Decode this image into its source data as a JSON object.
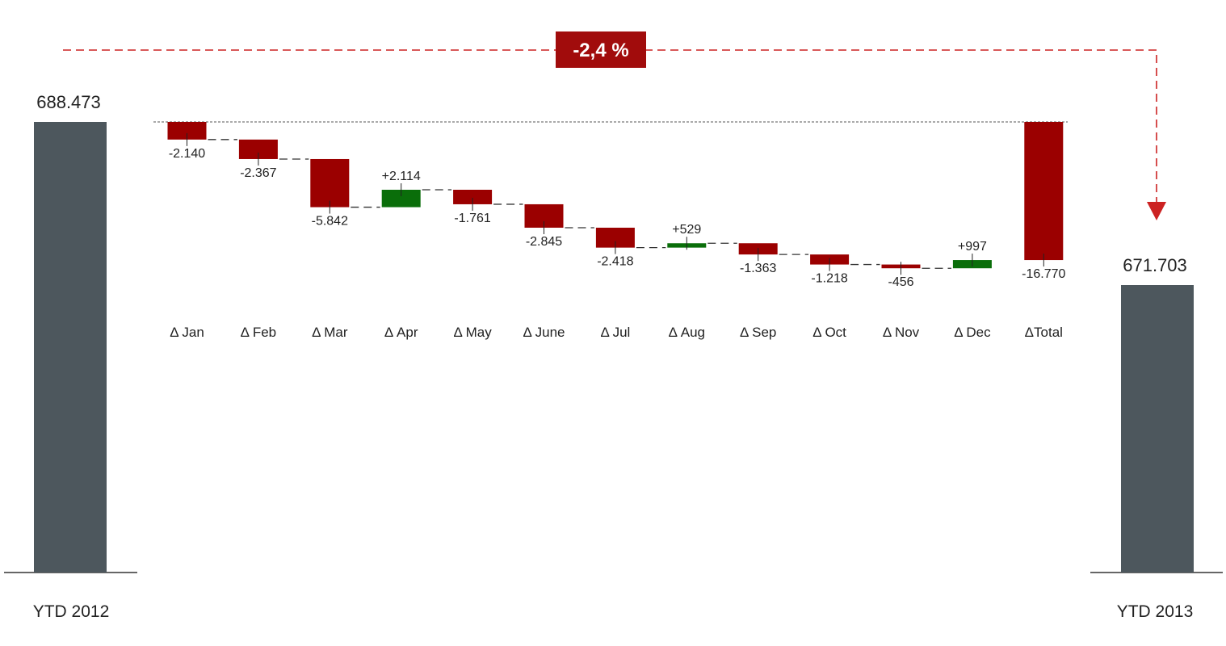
{
  "chart_data": {
    "type": "bar",
    "subtype": "waterfall",
    "totals": [
      {
        "label": "YTD 2012",
        "value": 688473,
        "value_label": "688.473"
      },
      {
        "label": "YTD 2013",
        "value": 671703,
        "value_label": "671.703"
      }
    ],
    "categories": [
      "Δ Jan",
      "Δ Feb",
      "Δ Mar",
      "Δ Apr",
      "Δ May",
      "Δ June",
      "Δ Jul",
      "Δ Aug",
      "Δ Sep",
      "Δ Oct",
      "Δ Nov",
      "Δ Dec",
      "ΔTotal"
    ],
    "values": [
      -2140,
      -2367,
      -5842,
      2114,
      -1761,
      -2845,
      -2418,
      529,
      -1363,
      -1218,
      -456,
      997,
      -16770
    ],
    "value_labels": [
      "-2.140",
      "-2.367",
      "-5.842",
      "+2.114",
      "-1.761",
      "-2.845",
      "-2.418",
      "+529",
      "-1.363",
      "-1.218",
      "-456",
      "+997",
      "-16.770"
    ],
    "change_badge": "-2,4 %",
    "colors": {
      "total_bar": "#4d575d",
      "negative": "#9b0000",
      "positive": "#0a6e0a",
      "badge": "#a10c0c",
      "connector": "#333333",
      "arrow": "#cc2222"
    },
    "grid": false
  }
}
